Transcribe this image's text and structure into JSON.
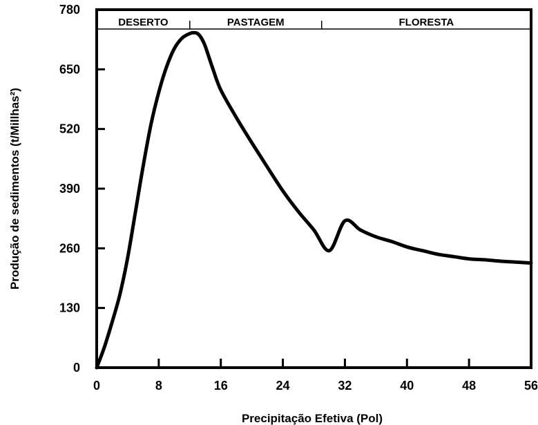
{
  "chart_data": {
    "type": "line",
    "title": "",
    "xlabel": "Precipitação Efetiva (Pol)",
    "ylabel": "Produção de sedimentos (t/Millhas²)",
    "xlim": [
      0,
      56
    ],
    "ylim": [
      0,
      780
    ],
    "xticks": [
      0,
      8,
      16,
      24,
      32,
      40,
      48,
      56
    ],
    "yticks": [
      0,
      130,
      260,
      390,
      520,
      650,
      780
    ],
    "grid": false,
    "legend": "none",
    "zones": [
      {
        "label": "DESERTO",
        "from": 0,
        "to": 12
      },
      {
        "label": "PASTAGEM",
        "from": 12,
        "to": 29
      },
      {
        "label": "FLORESTA",
        "from": 29,
        "to": 56
      }
    ],
    "series": [
      {
        "x": [
          0,
          1,
          2,
          3,
          4,
          5,
          6,
          7,
          8,
          9,
          10,
          11,
          12,
          12.5,
          13,
          13.5,
          14,
          15,
          16,
          18,
          20,
          22,
          24,
          26,
          28,
          30,
          32,
          34,
          36,
          38,
          40,
          42,
          44,
          46,
          48,
          50,
          52,
          54,
          56
        ],
        "y": [
          0,
          45,
          100,
          160,
          240,
          340,
          440,
          530,
          600,
          655,
          695,
          718,
          728,
          730,
          728,
          718,
          700,
          650,
          605,
          545,
          490,
          437,
          385,
          340,
          300,
          255,
          320,
          300,
          285,
          275,
          263,
          255,
          247,
          242,
          237,
          235,
          232,
          230,
          228
        ],
        "color": "#000000"
      }
    ]
  }
}
